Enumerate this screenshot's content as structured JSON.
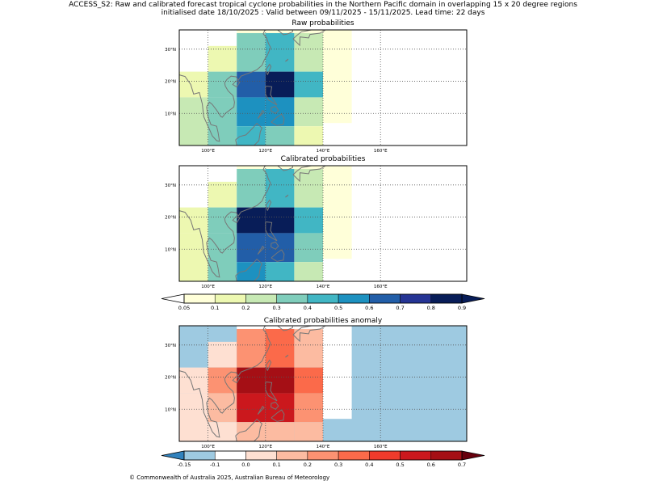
{
  "header": {
    "line1": "ACCESS_S2: Raw and calibrated forecast tropical cyclone probabilities in the Northern Pacific domain in overlapping 15 x 20 degree regions",
    "line2": "initialised date 18/10/2025 :  Valid between 09/11/2025 - 15/11/2025. Lead time: 22 days"
  },
  "footer": "© Commonwealth of Australia 2025, Australian Bureau of Meteorology",
  "chart_data": [
    {
      "type": "heatmap",
      "title": "Raw probabilities",
      "x_ticks": [
        "100°E",
        "120°E",
        "140°E",
        "160°E"
      ],
      "y_ticks": [
        "30°N",
        "20°N",
        "10°N"
      ],
      "cells_note": "lon/lat bounds in degrees, value = probability; null = no shading",
      "cells": [
        {
          "lon": [
            90,
            100
          ],
          "lat": [
            23,
            37
          ],
          "value": null
        },
        {
          "lon": [
            100,
            110
          ],
          "lat": [
            31,
            37
          ],
          "value": null
        },
        {
          "lon": [
            110,
            120
          ],
          "lat": [
            35,
            37
          ],
          "value": 0.05
        },
        {
          "lon": [
            120,
            130
          ],
          "lat": [
            35,
            37
          ],
          "value": 0.05
        },
        {
          "lon": [
            130,
            140
          ],
          "lat": [
            35,
            37
          ],
          "value": 0.05
        },
        {
          "lon": [
            140,
            150
          ],
          "lat": [
            7,
            37
          ],
          "value": 0.05
        },
        {
          "lon": [
            100,
            110
          ],
          "lat": [
            23,
            31
          ],
          "value": 0.1
        },
        {
          "lon": [
            110,
            120
          ],
          "lat": [
            23,
            35
          ],
          "value": 0.3
        },
        {
          "lon": [
            120,
            130
          ],
          "lat": [
            23,
            35
          ],
          "value": 0.4
        },
        {
          "lon": [
            130,
            140
          ],
          "lat": [
            23,
            35
          ],
          "value": 0.2
        },
        {
          "lon": [
            90,
            100
          ],
          "lat": [
            15,
            23
          ],
          "value": 0.1
        },
        {
          "lon": [
            100,
            110
          ],
          "lat": [
            15,
            23
          ],
          "value": 0.3
        },
        {
          "lon": [
            110,
            120
          ],
          "lat": [
            15,
            23
          ],
          "value": 0.6
        },
        {
          "lon": [
            120,
            130
          ],
          "lat": [
            15,
            23
          ],
          "value": 0.8
        },
        {
          "lon": [
            130,
            140
          ],
          "lat": [
            15,
            23
          ],
          "value": 0.4
        },
        {
          "lon": [
            90,
            100
          ],
          "lat": [
            0,
            15
          ],
          "value": 0.2
        },
        {
          "lon": [
            100,
            110
          ],
          "lat": [
            0,
            15
          ],
          "value": 0.3
        },
        {
          "lon": [
            110,
            120
          ],
          "lat": [
            6,
            15
          ],
          "value": 0.5
        },
        {
          "lon": [
            120,
            130
          ],
          "lat": [
            6,
            15
          ],
          "value": 0.5
        },
        {
          "lon": [
            130,
            140
          ],
          "lat": [
            6,
            15
          ],
          "value": 0.2
        },
        {
          "lon": [
            110,
            120
          ],
          "lat": [
            0,
            6
          ],
          "value": 0.4
        },
        {
          "lon": [
            120,
            130
          ],
          "lat": [
            0,
            6
          ],
          "value": 0.3
        },
        {
          "lon": [
            130,
            140
          ],
          "lat": [
            0,
            6
          ],
          "value": 0.1
        }
      ]
    },
    {
      "type": "heatmap",
      "title": "Calibrated probabilities",
      "x_ticks": [
        "100°E",
        "120°E",
        "140°E",
        "160°E"
      ],
      "y_ticks": [
        "30°N",
        "20°N",
        "10°N"
      ],
      "cells": [
        {
          "lon": [
            90,
            100
          ],
          "lat": [
            23,
            37
          ],
          "value": null
        },
        {
          "lon": [
            100,
            110
          ],
          "lat": [
            31,
            37
          ],
          "value": null
        },
        {
          "lon": [
            110,
            120
          ],
          "lat": [
            35,
            37
          ],
          "value": 0.05
        },
        {
          "lon": [
            120,
            130
          ],
          "lat": [
            35,
            37
          ],
          "value": 0.05
        },
        {
          "lon": [
            130,
            140
          ],
          "lat": [
            35,
            37
          ],
          "value": 0.05
        },
        {
          "lon": [
            140,
            150
          ],
          "lat": [
            7,
            37
          ],
          "value": 0.05
        },
        {
          "lon": [
            100,
            110
          ],
          "lat": [
            23,
            31
          ],
          "value": 0.1
        },
        {
          "lon": [
            110,
            120
          ],
          "lat": [
            23,
            35
          ],
          "value": 0.3
        },
        {
          "lon": [
            120,
            130
          ],
          "lat": [
            23,
            35
          ],
          "value": 0.4
        },
        {
          "lon": [
            130,
            140
          ],
          "lat": [
            23,
            35
          ],
          "value": 0.2
        },
        {
          "lon": [
            90,
            100
          ],
          "lat": [
            15,
            23
          ],
          "value": 0.1
        },
        {
          "lon": [
            100,
            110
          ],
          "lat": [
            15,
            23
          ],
          "value": 0.3
        },
        {
          "lon": [
            110,
            120
          ],
          "lat": [
            15,
            23
          ],
          "value": 0.8
        },
        {
          "lon": [
            120,
            130
          ],
          "lat": [
            15,
            23
          ],
          "value": 0.8
        },
        {
          "lon": [
            130,
            140
          ],
          "lat": [
            15,
            23
          ],
          "value": 0.4
        },
        {
          "lon": [
            90,
            100
          ],
          "lat": [
            0,
            15
          ],
          "value": 0.1
        },
        {
          "lon": [
            100,
            110
          ],
          "lat": [
            0,
            15
          ],
          "value": 0.3
        },
        {
          "lon": [
            110,
            120
          ],
          "lat": [
            6,
            15
          ],
          "value": 0.6
        },
        {
          "lon": [
            120,
            130
          ],
          "lat": [
            6,
            15
          ],
          "value": 0.6
        },
        {
          "lon": [
            130,
            140
          ],
          "lat": [
            6,
            15
          ],
          "value": 0.3
        },
        {
          "lon": [
            110,
            120
          ],
          "lat": [
            0,
            6
          ],
          "value": 0.5
        },
        {
          "lon": [
            120,
            130
          ],
          "lat": [
            0,
            6
          ],
          "value": 0.4
        },
        {
          "lon": [
            130,
            140
          ],
          "lat": [
            0,
            6
          ],
          "value": 0.2
        }
      ]
    },
    {
      "type": "heatmap",
      "title": "Calibrated probabilities anomaly",
      "x_ticks": [
        "100°E",
        "120°E",
        "140°E",
        "160°E"
      ],
      "y_ticks": [
        "30°N",
        "20°N",
        "10°N"
      ],
      "cells": [
        {
          "lon": [
            90,
            190
          ],
          "lat": [
            0,
            37
          ],
          "value": -0.15
        },
        {
          "lon": [
            110,
            120
          ],
          "lat": [
            35,
            37
          ],
          "value": -0.1
        },
        {
          "lon": [
            120,
            130
          ],
          "lat": [
            35,
            37
          ],
          "value": null
        },
        {
          "lon": [
            130,
            140
          ],
          "lat": [
            35,
            37
          ],
          "value": null
        },
        {
          "lon": [
            100,
            110
          ],
          "lat": [
            23,
            31
          ],
          "value": 0.0
        },
        {
          "lon": [
            110,
            120
          ],
          "lat": [
            23,
            35
          ],
          "value": 0.2
        },
        {
          "lon": [
            120,
            130
          ],
          "lat": [
            23,
            35
          ],
          "value": 0.3
        },
        {
          "lon": [
            130,
            140
          ],
          "lat": [
            23,
            35
          ],
          "value": 0.1
        },
        {
          "lon": [
            140,
            150
          ],
          "lat": [
            7,
            37
          ],
          "value": -0.1
        },
        {
          "lon": [
            90,
            100
          ],
          "lat": [
            15,
            23
          ],
          "value": 0.0
        },
        {
          "lon": [
            100,
            110
          ],
          "lat": [
            15,
            23
          ],
          "value": 0.2
        },
        {
          "lon": [
            110,
            120
          ],
          "lat": [
            15,
            23
          ],
          "value": 0.6
        },
        {
          "lon": [
            120,
            130
          ],
          "lat": [
            15,
            23
          ],
          "value": 0.6
        },
        {
          "lon": [
            130,
            140
          ],
          "lat": [
            15,
            23
          ],
          "value": 0.3
        },
        {
          "lon": [
            90,
            100
          ],
          "lat": [
            0,
            15
          ],
          "value": 0.0
        },
        {
          "lon": [
            100,
            110
          ],
          "lat": [
            6,
            15
          ],
          "value": 0.1
        },
        {
          "lon": [
            110,
            120
          ],
          "lat": [
            6,
            15
          ],
          "value": 0.5
        },
        {
          "lon": [
            120,
            130
          ],
          "lat": [
            6,
            15
          ],
          "value": 0.5
        },
        {
          "lon": [
            130,
            140
          ],
          "lat": [
            6,
            15
          ],
          "value": 0.2
        },
        {
          "lon": [
            100,
            110
          ],
          "lat": [
            0,
            6
          ],
          "value": 0.0
        },
        {
          "lon": [
            110,
            120
          ],
          "lat": [
            0,
            6
          ],
          "value": 0.1
        },
        {
          "lon": [
            120,
            130
          ],
          "lat": [
            0,
            6
          ],
          "value": 0.1
        },
        {
          "lon": [
            130,
            140
          ],
          "lat": [
            0,
            6
          ],
          "value": 0.1
        }
      ]
    }
  ],
  "colorbars": {
    "probability": {
      "labels": [
        "0.05",
        "0.1",
        "0.2",
        "0.3",
        "0.4",
        "0.5",
        "0.6",
        "0.7",
        "0.8",
        "0.9"
      ],
      "colors": [
        "#ffffd9",
        "#edf8b1",
        "#c7e9b4",
        "#7fcdbb",
        "#41b6c4",
        "#1d91c0",
        "#225ea8",
        "#253494",
        "#081d58"
      ],
      "under_color": "#ffffff",
      "over_color": "#081d58"
    },
    "anomaly": {
      "labels": [
        "-0.15",
        "-0.1",
        "0.0",
        "0.1",
        "0.2",
        "0.3",
        "0.4",
        "0.5",
        "0.6",
        "0.7"
      ],
      "colors": [
        "#9ecae1",
        "#ffffff",
        "#fee0d2",
        "#fcbba1",
        "#fc9272",
        "#fb6a4a",
        "#ef3b2c",
        "#cb181d",
        "#a50f15"
      ],
      "under_color": "#3182bd",
      "over_color": "#67000d"
    }
  }
}
